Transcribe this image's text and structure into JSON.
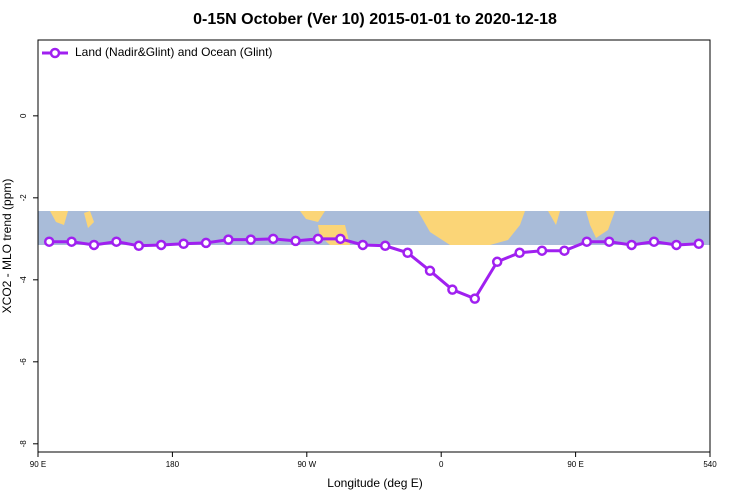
{
  "chart_data": {
    "type": "line",
    "title": "0-15N October (Ver 10)   2015-01-01 to 2020-12-18",
    "x_label": "Longitude (deg E)",
    "y_label": "XCO2 - MLO trend (ppm)",
    "x": [
      97.5,
      112.5,
      127.5,
      142.5,
      157.5,
      172.5,
      187.5,
      202.5,
      217.5,
      232.5,
      247.5,
      262.5,
      277.5,
      292.5,
      307.5,
      322.5,
      337.5,
      352.5,
      367.5,
      382.5,
      397.5,
      412.5,
      427.5,
      442.5,
      457.5,
      472.5,
      487.5,
      502.5,
      517.5,
      532.5
    ],
    "series": [
      {
        "name": "Land (Nadir&Glint) and Ocean (Glint)",
        "color": "#a020f0",
        "values": [
          -3.07,
          -3.07,
          -3.15,
          -3.07,
          -3.17,
          -3.15,
          -3.12,
          -3.1,
          -3.02,
          -3.02,
          -3.0,
          -3.05,
          -3.0,
          -3.0,
          -3.15,
          -3.17,
          -3.34,
          -3.78,
          -4.24,
          -4.46,
          -3.56,
          -3.34,
          -3.29,
          -3.29,
          -3.07,
          -3.07,
          -3.15,
          -3.07,
          -3.15,
          -3.12
        ]
      }
    ],
    "xlim": [
      90,
      540
    ],
    "xticks": [
      {
        "value": 90,
        "label": "90 E"
      },
      180,
      {
        "value": 270,
        "label": "90 W"
      },
      {
        "value": 360,
        "label": "0"
      },
      {
        "value": 450,
        "label": "90 E"
      },
      540
    ],
    "ylim": [
      -8.2,
      1.85
    ],
    "yticks": [
      0,
      -2,
      -4,
      -6,
      -8
    ],
    "legend": "top-left"
  }
}
